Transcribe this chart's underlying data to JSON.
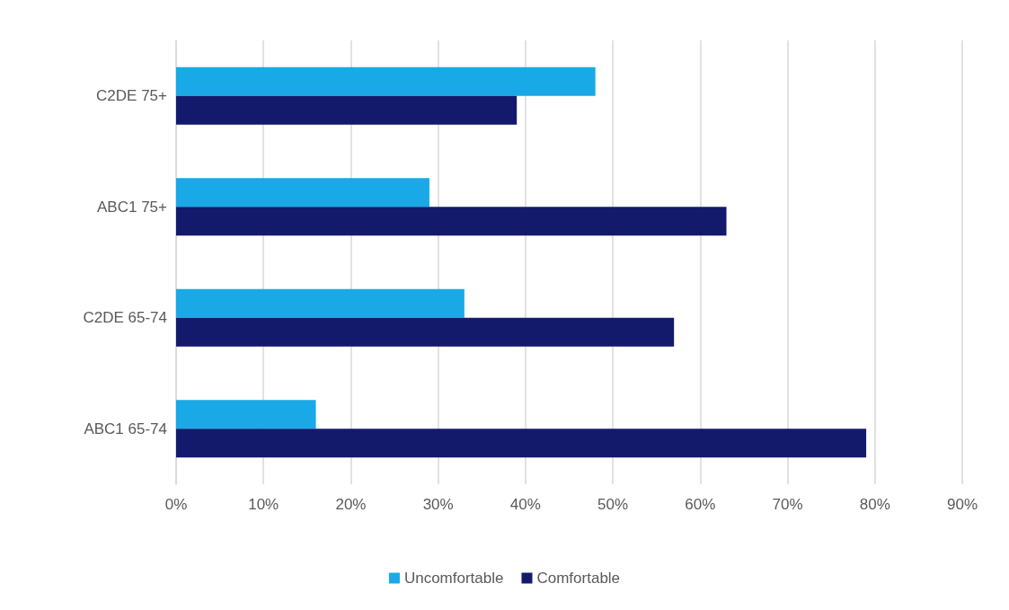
{
  "chart_data": {
    "type": "bar",
    "orientation": "horizontal",
    "categories": [
      "C2DE 75+",
      "ABC1 75+",
      "C2DE 65-74",
      "ABC1 65-74"
    ],
    "series": [
      {
        "name": "Uncomfortable",
        "color": "#19a9e6",
        "values": [
          48,
          29,
          33,
          16
        ]
      },
      {
        "name": "Comfortable",
        "color": "#13196b",
        "values": [
          39,
          63,
          57,
          79
        ]
      }
    ],
    "xlim": [
      0,
      90
    ],
    "xticks": [
      {
        "value": 0,
        "label": "0%"
      },
      {
        "value": 10,
        "label": "10%"
      },
      {
        "value": 20,
        "label": "20%"
      },
      {
        "value": 30,
        "label": "30%"
      },
      {
        "value": 40,
        "label": "40%"
      },
      {
        "value": 50,
        "label": "50%"
      },
      {
        "value": 60,
        "label": "60%"
      },
      {
        "value": 70,
        "label": "70%"
      },
      {
        "value": 80,
        "label": "80%"
      },
      {
        "value": 90,
        "label": "90%"
      }
    ],
    "grid": "x",
    "legend": "bottom"
  }
}
